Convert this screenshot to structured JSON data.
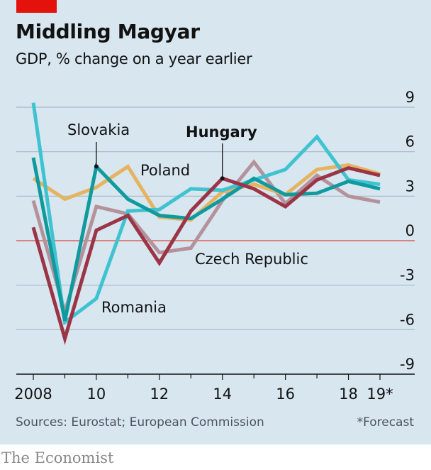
{
  "header": {
    "title": "Middling Magyar",
    "subtitle": "GDP, % change on a year earlier"
  },
  "footer": {
    "source": "Sources: Eurostat; European Commission",
    "footnote": "*Forecast",
    "brand": "The Economist"
  },
  "colors": {
    "background": "#d7e6ef",
    "accent_tag": "#e3120b",
    "zero_line": "#e0605a",
    "grid": "#a9b9c4"
  },
  "chart_data": {
    "type": "line",
    "title": "Middling Magyar",
    "subtitle": "GDP, % change on a year earlier",
    "xlabel": "",
    "ylabel": "",
    "x": [
      2008,
      2009,
      2010,
      2011,
      2012,
      2013,
      2014,
      2015,
      2016,
      2017,
      2018,
      2019
    ],
    "x_tick_values": [
      2008,
      2010,
      2012,
      2014,
      2016,
      2018,
      2019
    ],
    "x_tick_labels": [
      "2008",
      "10",
      "12",
      "14",
      "16",
      "18",
      "19*"
    ],
    "ylim": [
      -9,
      9
    ],
    "y_ticks": [
      9,
      6,
      3,
      0,
      -3,
      -6,
      -9
    ],
    "y_tick_labels": [
      "9",
      "6",
      "3",
      "0",
      "-3",
      "-6",
      "-9"
    ],
    "y_axis_position": "right",
    "grid": true,
    "legend": "inline labels",
    "series": [
      {
        "name": "Czech Republic",
        "color": "#b5929b",
        "values": [
          2.7,
          -4.8,
          2.3,
          1.8,
          -0.8,
          -0.5,
          2.7,
          5.3,
          2.5,
          4.4,
          3.0,
          2.6
        ]
      },
      {
        "name": "Poland",
        "color": "#e6b35f",
        "values": [
          4.2,
          2.8,
          3.6,
          5.0,
          1.6,
          1.4,
          3.3,
          3.8,
          3.1,
          4.8,
          5.1,
          4.5
        ]
      },
      {
        "name": "Romania",
        "color": "#3fc3d1",
        "values": [
          9.3,
          -5.5,
          -3.9,
          2.0,
          2.1,
          3.5,
          3.4,
          4.1,
          4.8,
          7.0,
          4.1,
          3.8
        ]
      },
      {
        "name": "Slovakia",
        "color": "#0f9a9e",
        "values": [
          5.6,
          -5.4,
          5.0,
          2.8,
          1.7,
          1.5,
          2.8,
          4.2,
          3.1,
          3.2,
          4.0,
          3.5
        ]
      },
      {
        "name": "Hungary",
        "color": "#9b3446",
        "values": [
          0.9,
          -6.6,
          0.7,
          1.7,
          -1.5,
          2.0,
          4.2,
          3.5,
          2.3,
          4.1,
          4.9,
          4.4
        ]
      }
    ],
    "annotations": [
      {
        "text": "Slovakia",
        "series": "Slovakia",
        "x": 2010,
        "pointer": true,
        "bold": false
      },
      {
        "text": "Hungary",
        "series": "Hungary",
        "x": 2014,
        "pointer": true,
        "bold": true
      },
      {
        "text": "Poland",
        "series": "Poland",
        "pointer": false,
        "bold": false
      },
      {
        "text": "Czech Republic",
        "series": "Czech Republic",
        "pointer": false,
        "bold": false
      },
      {
        "text": "Romania",
        "series": "Romania",
        "pointer": false,
        "bold": false
      }
    ]
  }
}
